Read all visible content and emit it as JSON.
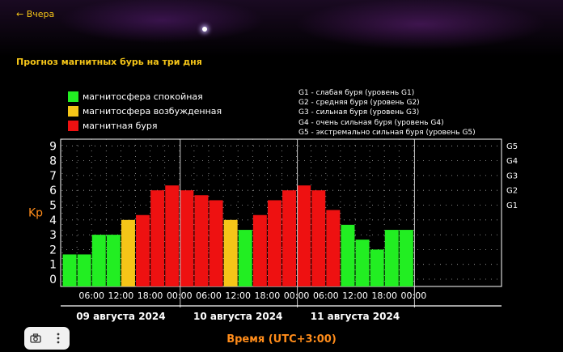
{
  "nav": {
    "back_label": "← Вчера"
  },
  "section": {
    "title": "Прогноз магнитных бурь на три дня"
  },
  "legend": [
    {
      "label": "магнитосфера спокойная",
      "color": "#22ee22"
    },
    {
      "label": "магнитосфера возбужденная",
      "color": "#f5c518"
    },
    {
      "label": "магнитная буря",
      "color": "#ee1111"
    }
  ],
  "g_levels": [
    "G1 - слабая буря (уровень G1)",
    "G2 - средняя буря (уровень G2)",
    "G3 - сильная буря (уровень G3)",
    "G4 - очень сильная буря (уровень G4)",
    "G5 - экстремально сильная буря (уровень G5)"
  ],
  "footer": {
    "time_label": "Время (UTC+3:00)"
  },
  "toolbar": {
    "camera_icon": "camera-icon",
    "more_icon": "more-vertical-icon"
  },
  "chart_data": {
    "type": "bar",
    "ylabel": "Kp",
    "ylim": [
      0,
      9
    ],
    "y_ticks": [
      "0",
      "1",
      "2",
      "3",
      "4",
      "5",
      "6",
      "7",
      "8",
      "9"
    ],
    "right_ticks": [
      {
        "label": "G1",
        "kp": 5
      },
      {
        "label": "G2",
        "kp": 6
      },
      {
        "label": "G3",
        "kp": 7
      },
      {
        "label": "G4",
        "kp": 8
      },
      {
        "label": "G5",
        "kp": 9
      }
    ],
    "x_tick_labels": [
      "06:00",
      "12:00",
      "18:00",
      "00:00",
      "06:00",
      "12:00",
      "18:00",
      "00:00",
      "06:00",
      "12:00",
      "18:00",
      "00:00"
    ],
    "days": [
      "09 августа 2024",
      "10 августа 2024",
      "11 августа 2024"
    ],
    "colors": {
      "quiet": "#22ee22",
      "active": "#f5c518",
      "storm": "#ee1111"
    },
    "values": [
      1.67,
      1.67,
      3.0,
      3.0,
      4.0,
      4.33,
      6.0,
      6.33,
      6.0,
      5.67,
      5.33,
      4.0,
      3.33,
      4.33,
      5.33,
      6.0,
      6.33,
      6.0,
      4.67,
      3.67,
      2.67,
      2.0,
      3.33,
      3.33
    ],
    "status": [
      "quiet",
      "quiet",
      "quiet",
      "quiet",
      "active",
      "storm",
      "storm",
      "storm",
      "storm",
      "storm",
      "storm",
      "active",
      "quiet",
      "storm",
      "storm",
      "storm",
      "storm",
      "storm",
      "storm",
      "quiet",
      "quiet",
      "quiet",
      "quiet",
      "quiet"
    ]
  }
}
